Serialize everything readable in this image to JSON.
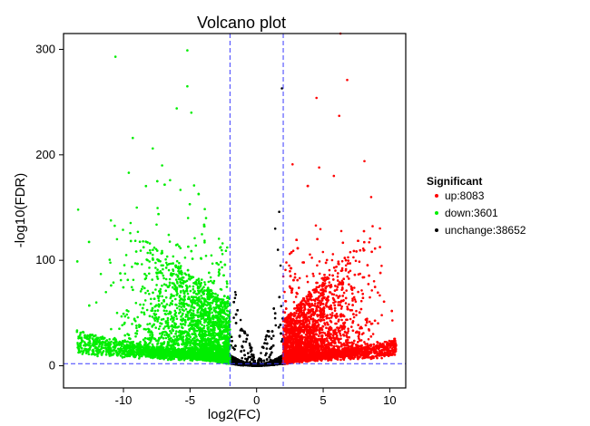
{
  "chart_data": {
    "type": "scatter",
    "title": "Volcano plot",
    "xlabel": "log2(FC)",
    "ylabel": "-log10(FDR)",
    "xlim": [
      -14.5,
      11.2
    ],
    "ylim": [
      -21,
      315
    ],
    "x_ticks": [
      -10,
      -5,
      0,
      5,
      10
    ],
    "y_ticks": [
      0,
      100,
      200,
      300
    ],
    "x_tick_labels": [
      "-10",
      "-5",
      "0",
      "5",
      "10"
    ],
    "y_tick_labels": [
      "0",
      "100",
      "200",
      "300"
    ],
    "grid": false,
    "thresholds": {
      "log2fc": [
        -2,
        2
      ],
      "neg_log10_fdr": 2
    },
    "legend": {
      "title": "Significant",
      "position": "right",
      "entries": [
        "up:8083",
        "down:3601",
        "unchange:38652"
      ]
    },
    "series": [
      {
        "name": "up",
        "color": "#ff0000",
        "count": 8083
      },
      {
        "name": "down",
        "color": "#00ee00",
        "count": 3601
      },
      {
        "name": "unchange",
        "color": "#000000",
        "count": 38652
      }
    ],
    "highlighted_points": {
      "down": [
        [
          -13.4,
          148
        ],
        [
          -10.6,
          293
        ],
        [
          -5.2,
          299
        ],
        [
          -5.2,
          265
        ],
        [
          -6.0,
          244
        ],
        [
          -4.9,
          240
        ],
        [
          -9.3,
          216
        ],
        [
          -7.8,
          206
        ],
        [
          -9.6,
          183
        ],
        [
          -7.1,
          190
        ],
        [
          -6.5,
          176
        ],
        [
          -4.7,
          171
        ],
        [
          -3.8,
          140
        ],
        [
          -9.0,
          150
        ],
        [
          -11.7,
          87
        ],
        [
          -13.3,
          27
        ]
      ],
      "up": [
        [
          6.3,
          315
        ],
        [
          6.8,
          271
        ],
        [
          4.5,
          254
        ],
        [
          6.2,
          237
        ],
        [
          8.1,
          194
        ],
        [
          2.7,
          191
        ],
        [
          4.7,
          188
        ],
        [
          5.8,
          180
        ],
        [
          8.6,
          160
        ],
        [
          10.2,
          43
        ],
        [
          9.4,
          48
        ]
      ],
      "unchange": [
        [
          1.9,
          263
        ],
        [
          1.7,
          146
        ],
        [
          1.4,
          130
        ],
        [
          1.6,
          110
        ],
        [
          1.8,
          95
        ]
      ]
    }
  }
}
